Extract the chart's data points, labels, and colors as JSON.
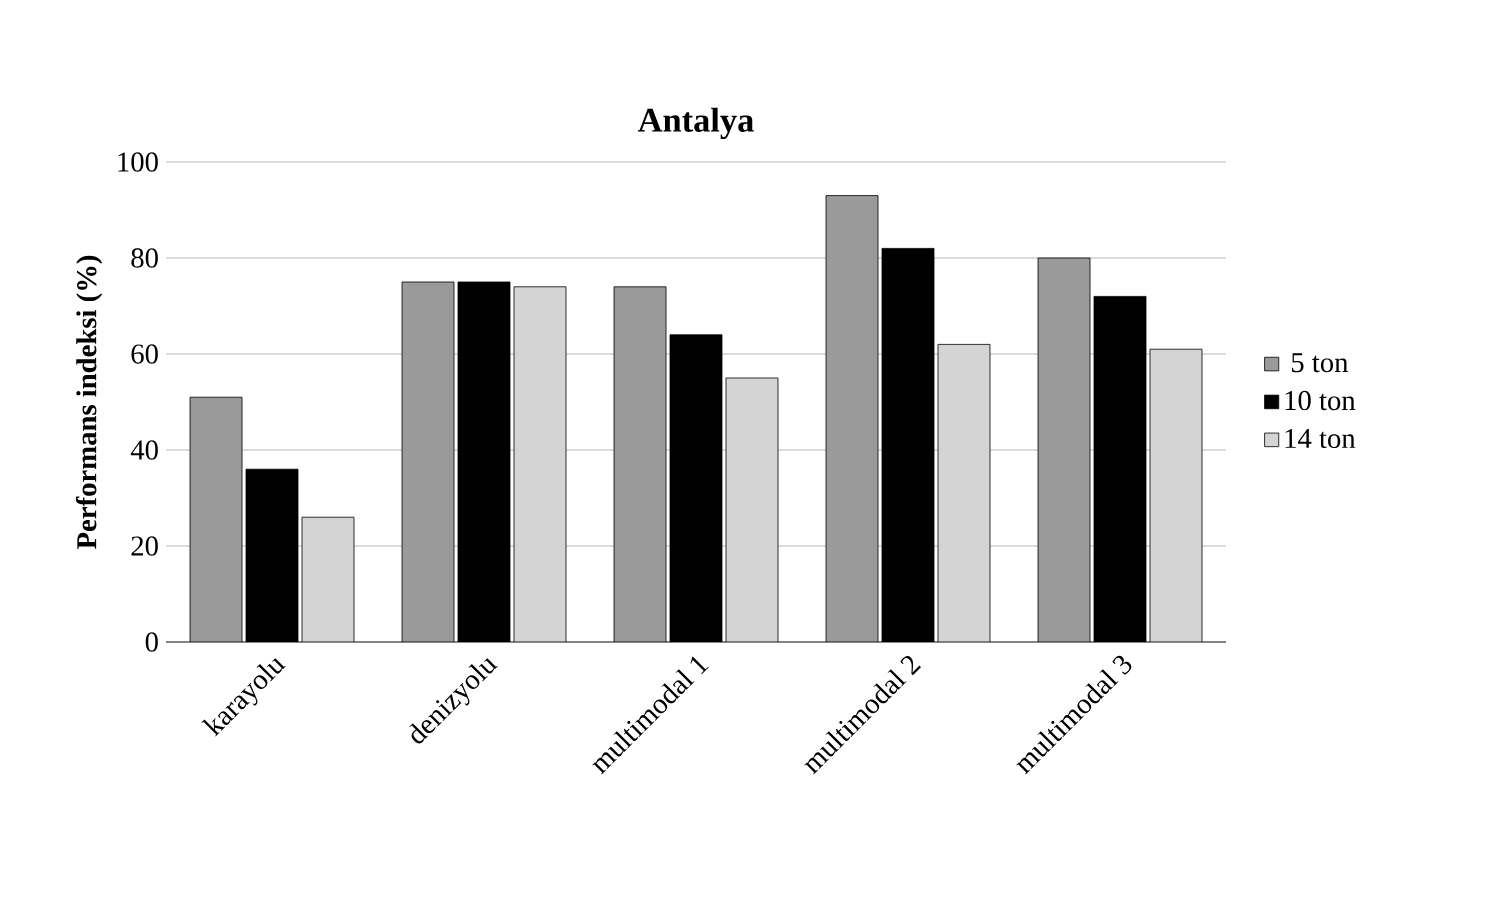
{
  "chart_data": {
    "type": "bar",
    "title": "Antalya",
    "ylabel": "Performans indeksi  (%)",
    "categories": [
      "karayolu",
      "denizyolu",
      "multimodal 1",
      "multimodal 2",
      "multimodal 3"
    ],
    "series": [
      {
        "name": "5 ton",
        "color": "#9a9a9a",
        "values": [
          51,
          75,
          74,
          93,
          80
        ]
      },
      {
        "name": "10 ton",
        "color": "#000000",
        "values": [
          36,
          75,
          64,
          82,
          72
        ]
      },
      {
        "name": "14 ton",
        "color": "#d4d4d4",
        "values": [
          26,
          74,
          55,
          62,
          61
        ]
      }
    ],
    "ylim": [
      0,
      100
    ],
    "yticks": [
      0,
      20,
      40,
      60,
      80,
      100
    ],
    "grid": "y",
    "legend": "right"
  }
}
